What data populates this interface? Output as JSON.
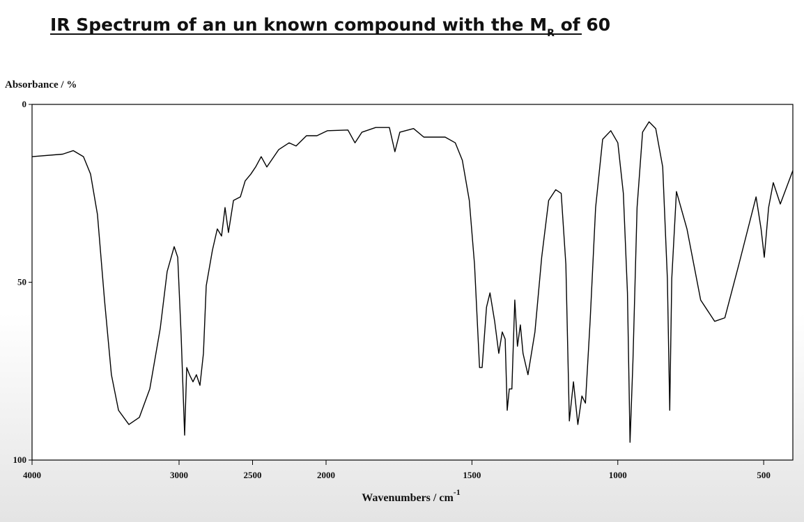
{
  "chart_data": {
    "type": "line",
    "title_parts": [
      "IR Spectrum of an un known compound with the M",
      "R",
      " of 60"
    ],
    "ylabel": "Absorbance / %",
    "xlabel_parts": [
      "Wavenumbers / cm",
      "-1"
    ],
    "color": "#000000",
    "xlim": [
      4000,
      400
    ],
    "x_scale_change_at": 2000,
    "xticks": [
      4000,
      3000,
      2500,
      2000,
      1500,
      1000,
      500
    ],
    "ylim": [
      0,
      100
    ],
    "y_inverted": true,
    "yticks": [
      0,
      50,
      100
    ],
    "x": [
      4000,
      3792,
      3720,
      3650,
      3602,
      3555,
      3507,
      3460,
      3412,
      3341,
      3270,
      3199,
      3128,
      3081,
      3033,
      3009,
      2986,
      2962,
      2948,
      2929,
      2905,
      2882,
      2858,
      2834,
      2815,
      2773,
      2740,
      2711,
      2687,
      2664,
      2630,
      2583,
      2550,
      2512,
      2479,
      2441,
      2403,
      2322,
      2251,
      2204,
      2133,
      2062,
      1995,
      1925,
      1901,
      1877,
      1830,
      1783,
      1764,
      1747,
      1700,
      1665,
      1592,
      1557,
      1533,
      1509,
      1491,
      1474,
      1465,
      1450,
      1438,
      1422,
      1408,
      1396,
      1386,
      1379,
      1372,
      1363,
      1353,
      1344,
      1334,
      1325,
      1308,
      1284,
      1261,
      1237,
      1213,
      1194,
      1178,
      1166,
      1152,
      1137,
      1123,
      1111,
      1095,
      1076,
      1052,
      1024,
      1000,
      981,
      967,
      958,
      948,
      934,
      915,
      893,
      870,
      846,
      830,
      822,
      815,
      799,
      763,
      716,
      668,
      633,
      585,
      526,
      509,
      498,
      483,
      467,
      443,
      400
    ],
    "values": [
      14.7,
      14,
      13,
      14.7,
      19.6,
      31,
      55,
      76,
      86,
      90,
      88,
      80,
      63,
      47,
      40,
      43,
      65,
      93,
      74,
      76,
      78,
      76,
      79,
      70,
      51,
      41,
      35,
      37,
      29,
      36,
      27,
      26,
      21.5,
      19.6,
      17.6,
      14.7,
      17.6,
      12.7,
      10.8,
      11.7,
      8.8,
      8.8,
      7.4,
      7.2,
      10.8,
      7.8,
      6.5,
      6.5,
      13.3,
      7.8,
      6.8,
      9.2,
      9.2,
      10.8,
      15.7,
      27,
      45,
      74,
      74,
      57,
      53,
      61,
      70,
      64,
      66,
      86,
      80,
      80,
      55,
      68,
      62,
      70,
      76,
      64,
      43,
      27,
      24,
      25,
      45,
      89,
      78,
      90,
      82,
      84,
      61,
      29,
      9.8,
      7.4,
      10.8,
      25,
      53,
      95,
      72,
      29,
      7.8,
      4.9,
      6.8,
      17.6,
      49,
      86,
      49,
      24.5,
      35,
      55,
      61,
      60,
      45,
      26,
      35,
      43,
      29,
      22,
      28,
      18.6
    ]
  }
}
